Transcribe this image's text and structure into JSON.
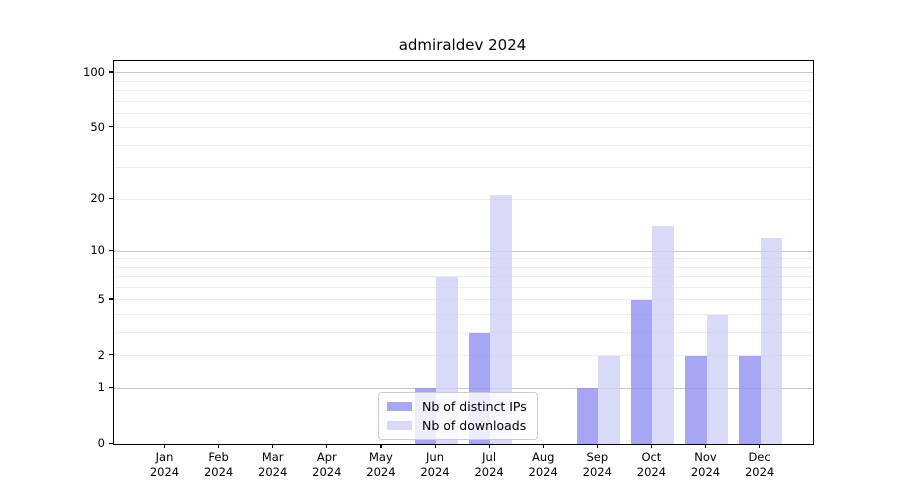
{
  "title": "admiraldev 2024",
  "chart_data": {
    "type": "bar",
    "title": "admiraldev 2024",
    "categories": [
      "Jan 2024",
      "Feb 2024",
      "Mar 2024",
      "Apr 2024",
      "May 2024",
      "Jun 2024",
      "Jul 2024",
      "Aug 2024",
      "Sep 2024",
      "Oct 2024",
      "Nov 2024",
      "Dec 2024"
    ],
    "month_labels": [
      "Jan",
      "Feb",
      "Mar",
      "Apr",
      "May",
      "Jun",
      "Jul",
      "Aug",
      "Sep",
      "Oct",
      "Nov",
      "Dec"
    ],
    "year_label": "2024",
    "series": [
      {
        "name": "Nb of distinct IPs",
        "color": "#8888ee",
        "values": [
          0,
          0,
          0,
          0,
          0,
          1,
          3,
          0,
          1,
          5,
          2,
          2
        ]
      },
      {
        "name": "Nb of downloads",
        "color": "#ccccf5",
        "values": [
          0,
          0,
          0,
          0,
          0,
          7,
          21,
          0,
          2,
          14,
          4,
          12
        ]
      }
    ],
    "xlabel": "",
    "ylabel": "",
    "yscale": "log1p",
    "y_axis_top_value": 116,
    "y_tick_values": [
      0,
      1,
      2,
      5,
      10,
      20,
      50,
      100
    ],
    "y_major_gridlines": [
      1,
      10,
      100
    ],
    "y_minor_gridlines": [
      2,
      3,
      4,
      5,
      6,
      7,
      8,
      9,
      20,
      30,
      40,
      50,
      60,
      70,
      80,
      90
    ],
    "ylim": [
      0,
      116
    ],
    "grid": true,
    "legend_position": "lower center",
    "legend_entries": [
      "Nb of distinct IPs",
      "Nb of downloads"
    ]
  },
  "colors": {
    "bar_distinct_ips": "#8888ee",
    "bar_downloads": "#ccccf5",
    "grid_major": "#c9c9c9",
    "grid_minor": "#ececec",
    "axis": "#000000",
    "legend_border": "#cccccc"
  }
}
